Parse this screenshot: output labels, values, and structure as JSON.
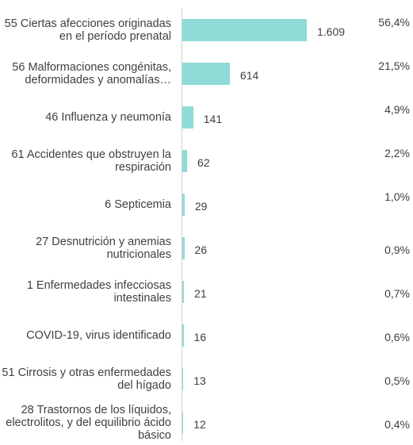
{
  "chart_data": {
    "type": "bar",
    "orientation": "horizontal",
    "categories": [
      "55 Ciertas afecciones originadas en el período prenatal",
      "56 Malformaciones congénitas, deformidades y anomalías…",
      "46 Influenza y neumonía",
      "61 Accidentes que obstruyen la respiración",
      "6 Septicemia",
      "27 Desnutrición y anemias nutricionales",
      "1 Enfermedades infecciosas intestinales",
      "COVID-19, virus identificado",
      "51 Cirrosis y otras enfermedades del hígado",
      "28 Trastornos de los líquidos, electrolitos, y del equilibrio ácido básico"
    ],
    "values": [
      1609,
      614,
      141,
      62,
      29,
      26,
      21,
      16,
      13,
      12
    ],
    "value_labels": [
      "1.609",
      "614",
      "141",
      "62",
      "29",
      "26",
      "21",
      "16",
      "13",
      "12"
    ],
    "share_labels": [
      "56,4%",
      "21,5%",
      "4,9%",
      "2,2%",
      "1,0%",
      "0,9%",
      "0,7%",
      "0,6%",
      "0,5%",
      "0,4%"
    ],
    "color": "#8fdcd6",
    "xlim": [
      0,
      1609
    ]
  }
}
